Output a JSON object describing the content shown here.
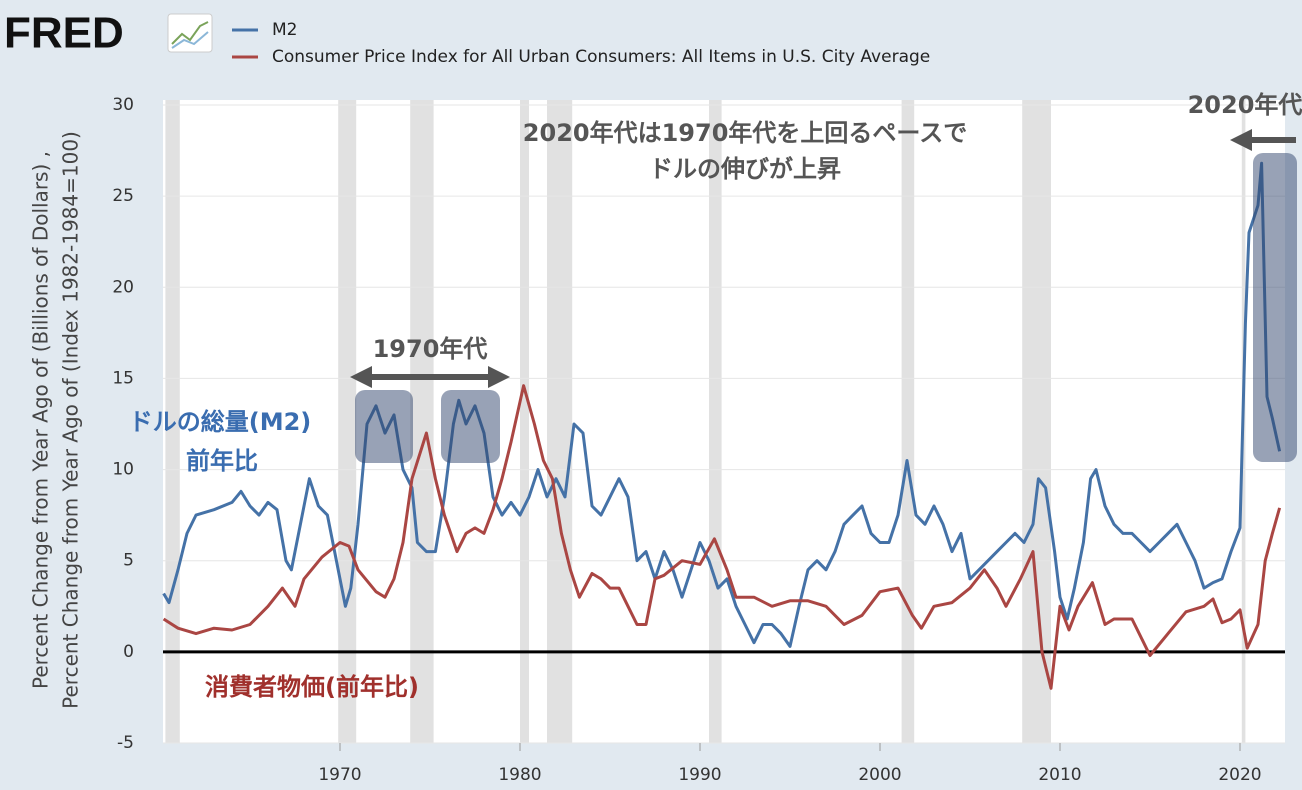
{
  "logo": "FRED",
  "chart_data": {
    "type": "line",
    "ylabel": [
      "Percent Change from Year Ago of (Billions of Dollars) ,",
      "Percent Change from Year Ago of (Index 1982-1984=100)"
    ],
    "xlim": [
      1960.2,
      2022.5
    ],
    "xticks": [
      1970,
      1980,
      1990,
      2000,
      2010,
      2020
    ],
    "ylim": [
      -5,
      30
    ],
    "yticks": [
      -5,
      0,
      5,
      10,
      15,
      20,
      25,
      30
    ],
    "grid": true,
    "recessions": [
      [
        1960.3,
        1961.1
      ],
      [
        1969.9,
        1970.9
      ],
      [
        1973.9,
        1975.2
      ],
      [
        1980.0,
        1980.5
      ],
      [
        1981.5,
        1982.9
      ],
      [
        1990.5,
        1991.2
      ],
      [
        2001.2,
        2001.9
      ],
      [
        2007.9,
        2009.5
      ],
      [
        2020.1,
        2020.3
      ]
    ],
    "series": [
      {
        "name": "M2",
        "color": "#4572a7",
        "x": [
          1960.2,
          1960.5,
          1961,
          1961.5,
          1962,
          1963,
          1964,
          1964.5,
          1965,
          1965.5,
          1966,
          1966.5,
          1967,
          1967.3,
          1967.8,
          1968.3,
          1968.8,
          1969.3,
          1969.8,
          1970.3,
          1970.6,
          1971,
          1971.5,
          1972,
          1972.5,
          1973,
          1973.5,
          1974,
          1974.3,
          1974.8,
          1975.3,
          1975.8,
          1976.3,
          1976.6,
          1977,
          1977.5,
          1978,
          1978.5,
          1979,
          1979.5,
          1980,
          1980.5,
          1981,
          1981.5,
          1982,
          1982.5,
          1983,
          1983.5,
          1984,
          1984.5,
          1985,
          1985.5,
          1986,
          1986.5,
          1987,
          1987.5,
          1988,
          1988.5,
          1989,
          1989.5,
          1990,
          1990.5,
          1991,
          1991.5,
          1992,
          1992.5,
          1993,
          1993.5,
          1994,
          1994.5,
          1995,
          1995.5,
          1996,
          1996.5,
          1997,
          1997.5,
          1998,
          1998.5,
          1999,
          1999.5,
          2000,
          2000.5,
          2001,
          2001.5,
          2002,
          2002.5,
          2003,
          2003.5,
          2004,
          2004.5,
          2005,
          2005.5,
          2006,
          2006.5,
          2007,
          2007.5,
          2008,
          2008.5,
          2008.8,
          2009.2,
          2009.7,
          2010,
          2010.4,
          2010.8,
          2011.3,
          2011.7,
          2012,
          2012.5,
          2013,
          2013.5,
          2014,
          2014.5,
          2015,
          2015.5,
          2016,
          2016.5,
          2017,
          2017.5,
          2018,
          2018.5,
          2019,
          2019.5,
          2020,
          2020.3,
          2020.5,
          2021,
          2021.2,
          2021.5,
          2021.8,
          2022.2
        ],
        "values": [
          3.2,
          2.7,
          4.5,
          6.5,
          7.5,
          7.8,
          8.2,
          8.8,
          8.0,
          7.5,
          8.2,
          7.8,
          5.0,
          4.5,
          7.0,
          9.5,
          8.0,
          7.5,
          5.0,
          2.5,
          3.5,
          7.0,
          12.5,
          13.5,
          12.0,
          13.0,
          10.0,
          9.0,
          6.0,
          5.5,
          5.5,
          8.5,
          12.5,
          13.8,
          12.5,
          13.5,
          12.0,
          8.5,
          7.5,
          8.2,
          7.5,
          8.5,
          10.0,
          8.5,
          9.5,
          8.5,
          12.5,
          12.0,
          8.0,
          7.5,
          8.5,
          9.5,
          8.5,
          5.0,
          5.5,
          4.0,
          5.5,
          4.5,
          3.0,
          4.5,
          6.0,
          5.0,
          3.5,
          4.0,
          2.5,
          1.5,
          0.5,
          1.5,
          1.5,
          1.0,
          0.3,
          2.5,
          4.5,
          5.0,
          4.5,
          5.5,
          7.0,
          7.5,
          8.0,
          6.5,
          6.0,
          6.0,
          7.5,
          10.5,
          7.5,
          7.0,
          8.0,
          7.0,
          5.5,
          6.5,
          4.0,
          4.5,
          5.0,
          5.5,
          6.0,
          6.5,
          6.0,
          7.0,
          9.5,
          9.0,
          5.5,
          3.0,
          1.8,
          3.5,
          6.0,
          9.5,
          10.0,
          8.0,
          7.0,
          6.5,
          6.5,
          6.0,
          5.5,
          6.0,
          6.5,
          7.0,
          6.0,
          5.0,
          3.5,
          3.8,
          4.0,
          5.5,
          6.8,
          18.0,
          23.0,
          24.5,
          26.8,
          14.0,
          12.8,
          11.0
        ]
      },
      {
        "name": "Consumer Price Index for All Urban Consumers: All Items in U.S. City Average",
        "color": "#aa4643",
        "x": [
          1960.2,
          1961,
          1962,
          1963,
          1964,
          1965,
          1966,
          1966.8,
          1967.5,
          1968,
          1969,
          1970,
          1970.5,
          1971,
          1972,
          1972.5,
          1973,
          1973.5,
          1974,
          1974.8,
          1975.3,
          1975.8,
          1976.5,
          1977,
          1977.5,
          1978,
          1978.5,
          1979,
          1979.5,
          1980.2,
          1980.8,
          1981.3,
          1981.8,
          1982.3,
          1982.8,
          1983.3,
          1984,
          1984.5,
          1985,
          1985.5,
          1986,
          1986.5,
          1987,
          1987.5,
          1988,
          1989,
          1990,
          1990.8,
          1991.5,
          1992,
          1993,
          1994,
          1995,
          1996,
          1997,
          1998,
          1999,
          2000,
          2001,
          2001.8,
          2002.3,
          2003,
          2004,
          2005,
          2005.8,
          2006.5,
          2007,
          2007.8,
          2008.5,
          2009,
          2009.5,
          2010,
          2010.5,
          2011,
          2011.8,
          2012.5,
          2013,
          2014,
          2015,
          2016,
          2017,
          2018,
          2018.5,
          2019,
          2019.5,
          2020,
          2020.4,
          2021,
          2021.4,
          2021.8,
          2022.2
        ],
        "values": [
          1.8,
          1.3,
          1.0,
          1.3,
          1.2,
          1.5,
          2.5,
          3.5,
          2.5,
          4.0,
          5.2,
          6.0,
          5.8,
          4.5,
          3.3,
          3.0,
          4.0,
          6.0,
          9.5,
          12.0,
          9.5,
          7.5,
          5.5,
          6.5,
          6.8,
          6.5,
          7.8,
          9.5,
          11.5,
          14.6,
          12.5,
          10.5,
          9.5,
          6.5,
          4.5,
          3.0,
          4.3,
          4.0,
          3.5,
          3.5,
          2.5,
          1.5,
          1.5,
          4.0,
          4.2,
          5.0,
          4.8,
          6.2,
          4.5,
          3.0,
          3.0,
          2.5,
          2.8,
          2.8,
          2.5,
          1.5,
          2.0,
          3.3,
          3.5,
          2.0,
          1.3,
          2.5,
          2.7,
          3.5,
          4.5,
          3.5,
          2.5,
          4.0,
          5.5,
          0.0,
          -2.0,
          2.5,
          1.2,
          2.5,
          3.8,
          1.5,
          1.8,
          1.8,
          -0.2,
          1.0,
          2.2,
          2.5,
          2.9,
          1.6,
          1.8,
          2.3,
          0.2,
          1.5,
          5.0,
          6.5,
          7.9
        ]
      }
    ],
    "annotations": [
      "1970年代",
      "2020年代",
      "2020年代は1970年代を上回るペースで",
      "ドルの伸びが上昇",
      "ドルの総量(M2)",
      "前年比",
      "消費者物価(前年比)"
    ]
  }
}
